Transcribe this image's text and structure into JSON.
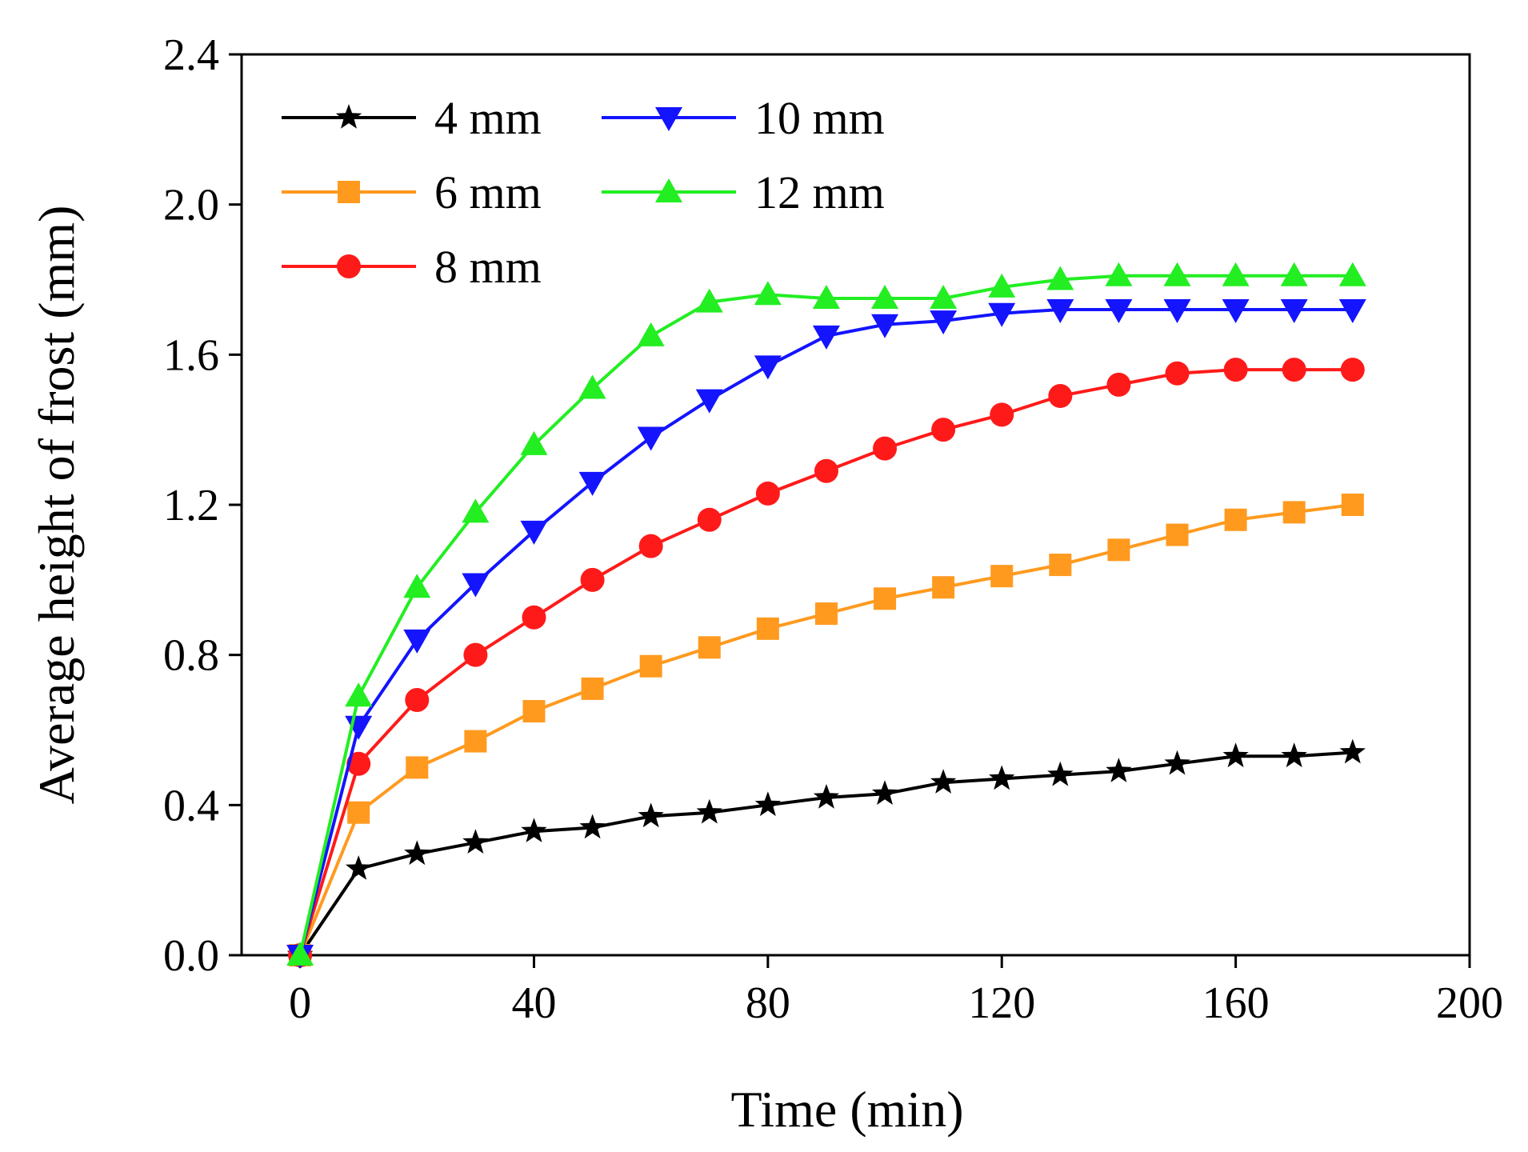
{
  "chart_data": {
    "type": "line",
    "title": "",
    "xlabel": "Time (min)",
    "ylabel": "Average height of frost (mm)",
    "xlim": [
      -10,
      200
    ],
    "ylim": [
      0,
      2.4
    ],
    "xticks": [
      "0",
      "40",
      "80",
      "120",
      "160",
      "200"
    ],
    "xtick_values": [
      0,
      40,
      80,
      120,
      160,
      200
    ],
    "yticks": [
      "0.0",
      "0.4",
      "0.8",
      "1.2",
      "1.6",
      "2.0",
      "2.4"
    ],
    "ytick_values": [
      0.0,
      0.4,
      0.8,
      1.2,
      1.6,
      2.0,
      2.4
    ],
    "grid": false,
    "legend_position": "top-left",
    "x": [
      0,
      10,
      20,
      30,
      40,
      50,
      60,
      70,
      80,
      90,
      100,
      110,
      120,
      130,
      140,
      150,
      160,
      170,
      180
    ],
    "series": [
      {
        "name": "4 mm",
        "color": "#000000",
        "marker": "star",
        "values": [
          0.0,
          0.23,
          0.27,
          0.3,
          0.33,
          0.34,
          0.37,
          0.38,
          0.4,
          0.42,
          0.43,
          0.46,
          0.47,
          0.48,
          0.49,
          0.51,
          0.53,
          0.53,
          0.54
        ]
      },
      {
        "name": "6 mm",
        "color": "#ff9a1f",
        "marker": "square",
        "values": [
          0.0,
          0.38,
          0.5,
          0.57,
          0.65,
          0.71,
          0.77,
          0.82,
          0.87,
          0.91,
          0.95,
          0.98,
          1.01,
          1.04,
          1.08,
          1.12,
          1.16,
          1.18,
          1.2
        ]
      },
      {
        "name": "8 mm",
        "color": "#ff1a1a",
        "marker": "circle",
        "values": [
          0.0,
          0.51,
          0.68,
          0.8,
          0.9,
          1.0,
          1.09,
          1.16,
          1.23,
          1.29,
          1.35,
          1.4,
          1.44,
          1.49,
          1.52,
          1.55,
          1.56,
          1.56,
          1.56
        ]
      },
      {
        "name": "10 mm",
        "color": "#1414ff",
        "marker": "triangle-down",
        "values": [
          0.0,
          0.61,
          0.84,
          0.99,
          1.13,
          1.26,
          1.38,
          1.48,
          1.57,
          1.65,
          1.68,
          1.69,
          1.71,
          1.72,
          1.72,
          1.72,
          1.72,
          1.72,
          1.72
        ]
      },
      {
        "name": "12 mm",
        "color": "#22ee22",
        "marker": "triangle-up",
        "values": [
          0.0,
          0.69,
          0.98,
          1.18,
          1.36,
          1.51,
          1.65,
          1.74,
          1.76,
          1.75,
          1.75,
          1.75,
          1.78,
          1.8,
          1.81,
          1.81,
          1.81,
          1.81,
          1.81
        ]
      }
    ]
  }
}
